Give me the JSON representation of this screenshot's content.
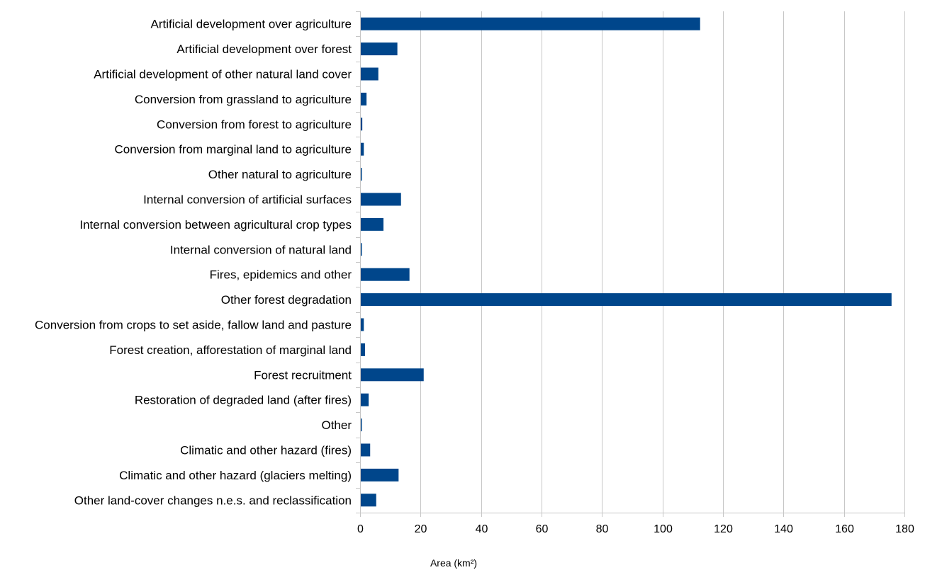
{
  "chart_data": {
    "type": "bar",
    "orientation": "horizontal",
    "categories": [
      "Artificial development over agriculture",
      "Artificial development over forest",
      "Artificial development of other natural land cover",
      "Conversion from grassland to agriculture",
      "Conversion from forest to agriculture",
      "Conversion from marginal land to agriculture",
      "Other natural to agriculture",
      "Internal conversion of artificial surfaces",
      "Internal conversion between agricultural crop types",
      "Internal conversion of natural land",
      "Fires, epidemics and other",
      "Other forest degradation",
      "Conversion from crops to set aside, fallow land and pasture",
      "Forest creation, afforestation of marginal land",
      "Forest recruitment",
      "Restoration of degraded land (after fires)",
      "Other",
      "Climatic and other hazard (fires)",
      "Climatic and other hazard (glaciers melting)",
      "Other land-cover changes n.e.s. and reclassification"
    ],
    "values": [
      112.2,
      12.1,
      5.8,
      1.9,
      0.5,
      1.0,
      0.3,
      13.3,
      7.5,
      0.3,
      16.1,
      175.5,
      1.0,
      1.4,
      20.8,
      2.6,
      0.3,
      3.1,
      12.5,
      5.1
    ],
    "xlabel": "Area (km²)",
    "ylabel": "",
    "xlim": [
      0,
      180
    ],
    "x_ticks": [
      0,
      20,
      40,
      60,
      80,
      100,
      120,
      140,
      160,
      180
    ],
    "grid": "vertical",
    "legend": "none",
    "bar_color": "#00468b",
    "grid_color": "#c6c6c6"
  }
}
